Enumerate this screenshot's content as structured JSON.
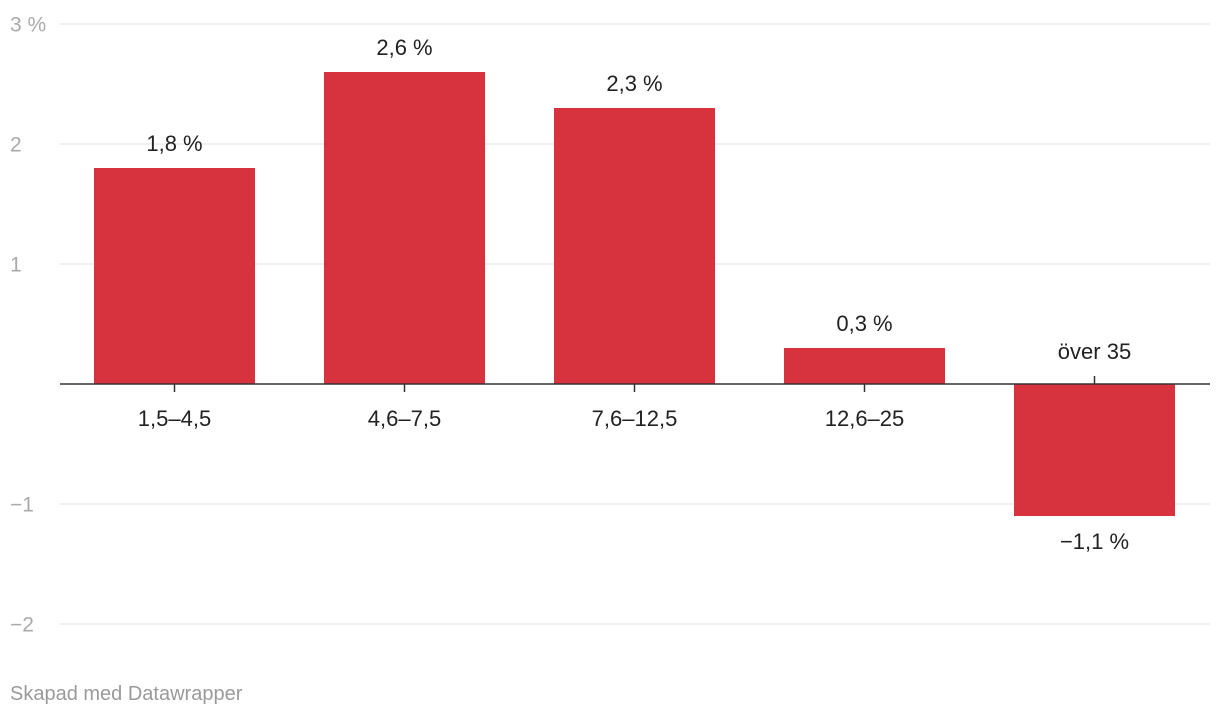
{
  "chart_data": {
    "type": "bar",
    "categories": [
      "1,5–4,5",
      "4,6–7,5",
      "7,6–12,5",
      "12,6–25",
      "över 35"
    ],
    "values": [
      1.8,
      2.6,
      2.3,
      0.3,
      -1.1
    ],
    "value_labels": [
      "1,8 %",
      "2,6 %",
      "2,3 %",
      "0,3 %",
      "−1,1 %"
    ],
    "ylim": [
      -2,
      3
    ],
    "yticks": [
      3,
      2,
      1,
      -1,
      -2
    ],
    "ytick_labels": [
      "3 %",
      "2",
      "1",
      "−1",
      "−2"
    ],
    "grid": true,
    "bar_color": "#d7333f"
  },
  "credit": "Skapad med Datawrapper"
}
